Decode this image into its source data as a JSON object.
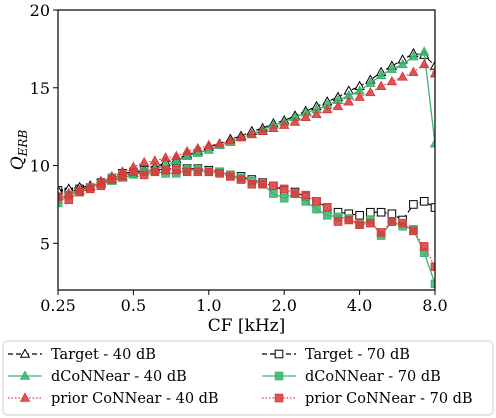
{
  "chart_data": {
    "type": "line",
    "xlabel": "CF [kHz]",
    "ylabel": "Q",
    "ylabel_sub": "ERB",
    "x_scale": "log",
    "xlim": [
      0.25,
      8.0
    ],
    "ylim": [
      2,
      20
    ],
    "x_ticks": [
      0.25,
      0.5,
      1.0,
      2.0,
      4.0,
      8.0
    ],
    "x_tick_labels": [
      "0.25",
      "0.5",
      "1.0",
      "2.0",
      "4.0",
      "8.0"
    ],
    "y_ticks": [
      5,
      10,
      15,
      20
    ],
    "y_tick_labels": [
      "5",
      "10",
      "15",
      "20"
    ],
    "grid": false,
    "legend_position": "below",
    "x": [
      0.25,
      0.276,
      0.305,
      0.336,
      0.371,
      0.41,
      0.452,
      0.5,
      0.552,
      0.609,
      0.672,
      0.742,
      0.819,
      0.904,
      1.0,
      1.104,
      1.219,
      1.345,
      1.485,
      1.64,
      1.81,
      2.0,
      2.208,
      2.438,
      2.691,
      2.971,
      3.28,
      3.621,
      4.0,
      4.416,
      4.875,
      5.382,
      5.942,
      6.56,
      7.243,
      8.0
    ],
    "series": [
      {
        "name": "Target - 40 dB",
        "color": "#000000",
        "marker": "triangle-open",
        "line": "dashed",
        "values": [
          8.4,
          8.5,
          8.6,
          8.7,
          8.9,
          9.1,
          9.3,
          9.5,
          9.7,
          9.9,
          10.2,
          10.4,
          10.7,
          10.9,
          11.2,
          11.4,
          11.7,
          11.9,
          12.2,
          12.4,
          12.7,
          12.9,
          13.2,
          13.5,
          13.8,
          14.1,
          14.4,
          14.8,
          15.1,
          15.5,
          16.0,
          16.4,
          16.8,
          17.2,
          17.1,
          16.4
        ]
      },
      {
        "name": "dCoNNear - 40 dB",
        "color": "#3cb371",
        "marker": "triangle-filled",
        "line": "solid",
        "values": [
          7.8,
          8.2,
          8.4,
          8.6,
          8.8,
          9.0,
          9.2,
          9.4,
          9.6,
          9.8,
          10.0,
          10.3,
          10.6,
          10.8,
          11.0,
          11.3,
          11.5,
          11.8,
          12.0,
          12.3,
          12.6,
          12.8,
          13.1,
          13.4,
          13.6,
          13.9,
          14.2,
          14.5,
          14.8,
          15.3,
          15.8,
          16.2,
          16.5,
          17.0,
          17.3,
          11.4
        ]
      },
      {
        "name": "prior CoNNear - 40 dB",
        "color": "#d93b3b",
        "marker": "triangle-filled",
        "line": "dotted",
        "values": [
          8.0,
          8.2,
          8.4,
          8.6,
          9.0,
          9.3,
          9.6,
          9.9,
          10.2,
          10.3,
          10.5,
          10.6,
          10.9,
          11.1,
          11.3,
          11.4,
          11.6,
          11.8,
          12.0,
          12.2,
          12.4,
          12.6,
          12.8,
          13.1,
          13.3,
          13.6,
          13.8,
          14.1,
          14.4,
          14.7,
          15.1,
          15.4,
          15.7,
          16.0,
          16.5,
          15.9
        ]
      },
      {
        "name": "Target - 70 dB",
        "color": "#000000",
        "marker": "square-open",
        "line": "dashed",
        "values": [
          8.4,
          8.3,
          8.5,
          8.6,
          8.9,
          9.2,
          9.5,
          9.6,
          9.7,
          9.7,
          9.8,
          9.8,
          9.8,
          9.8,
          9.7,
          9.6,
          9.4,
          9.3,
          9.1,
          8.9,
          8.7,
          8.4,
          8.3,
          8.0,
          7.7,
          7.3,
          7.0,
          6.9,
          6.8,
          7.0,
          7.0,
          6.9,
          6.5,
          7.5,
          7.7,
          7.3
        ]
      },
      {
        "name": "dCoNNear - 70 dB",
        "color": "#3cb371",
        "marker": "square-filled",
        "line": "solid",
        "values": [
          7.6,
          8.1,
          8.3,
          8.6,
          8.8,
          9.2,
          9.4,
          9.5,
          9.6,
          9.6,
          9.5,
          9.5,
          9.7,
          9.7,
          9.6,
          9.6,
          9.4,
          9.2,
          9.0,
          8.8,
          8.2,
          7.9,
          8.2,
          7.7,
          7.2,
          6.8,
          6.7,
          6.6,
          6.2,
          6.5,
          5.5,
          6.4,
          6.1,
          5.9,
          4.4,
          2.4
        ]
      },
      {
        "name": "prior CoNNear - 70 dB",
        "color": "#d93b3b",
        "marker": "square-filled",
        "line": "dotted",
        "values": [
          8.0,
          7.8,
          8.3,
          8.5,
          8.7,
          9.1,
          9.3,
          9.6,
          9.4,
          9.6,
          9.7,
          9.7,
          9.6,
          9.6,
          9.6,
          9.5,
          9.3,
          9.1,
          8.8,
          8.8,
          8.7,
          8.5,
          8.2,
          8.1,
          7.7,
          7.3,
          6.4,
          6.5,
          6.2,
          6.3,
          5.7,
          6.4,
          6.3,
          5.8,
          4.8,
          3.5
        ]
      }
    ]
  }
}
